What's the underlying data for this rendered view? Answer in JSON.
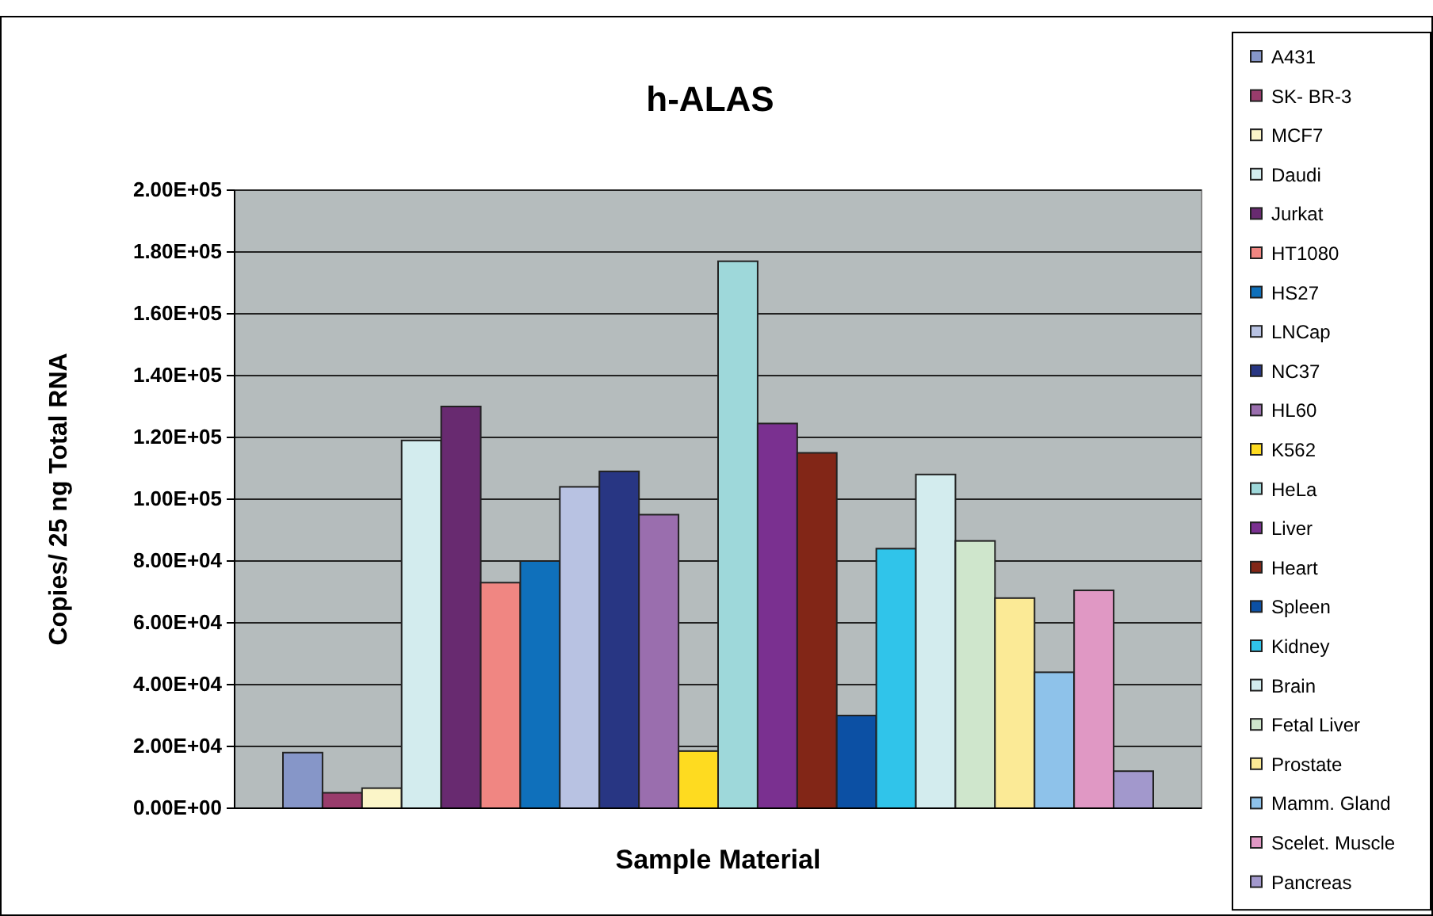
{
  "chart_data": {
    "type": "bar",
    "title": "h-ALAS",
    "xlabel": "Sample Material",
    "ylabel": "Copies/ 25 ng Total RNA",
    "categories": [
      null
    ],
    "ylim": [
      0,
      200000
    ],
    "yticks": [
      {
        "value": 0,
        "label": "0.00E+00"
      },
      {
        "value": 20000,
        "label": "2.00E+04"
      },
      {
        "value": 40000,
        "label": "4.00E+04"
      },
      {
        "value": 60000,
        "label": "6.00E+04"
      },
      {
        "value": 80000,
        "label": "8.00E+04"
      },
      {
        "value": 100000,
        "label": "1.00E+05"
      },
      {
        "value": 120000,
        "label": "1.20E+05"
      },
      {
        "value": 140000,
        "label": "1.40E+05"
      },
      {
        "value": 160000,
        "label": "1.60E+05"
      },
      {
        "value": 180000,
        "label": "1.80E+05"
      },
      {
        "value": 200000,
        "label": "2.00E+05"
      }
    ],
    "grid": "y",
    "legend": "right",
    "series": [
      {
        "name": "A431",
        "color": "#8696c8",
        "values": [
          18000
        ]
      },
      {
        "name": "SK- BR-3",
        "color": "#993c6c",
        "values": [
          5000
        ]
      },
      {
        "name": "MCF7",
        "color": "#fbf5c8",
        "values": [
          6500
        ]
      },
      {
        "name": "Daudi",
        "color": "#d3ecee",
        "values": [
          119000
        ]
      },
      {
        "name": "Jurkat",
        "color": "#682a70",
        "values": [
          130000
        ]
      },
      {
        "name": "HT1080",
        "color": "#f08682",
        "values": [
          73000
        ]
      },
      {
        "name": "HS27",
        "color": "#0f70bb",
        "values": [
          80000
        ]
      },
      {
        "name": "LNCap",
        "color": "#b8c2e2",
        "values": [
          104000
        ]
      },
      {
        "name": "NC37",
        "color": "#283683",
        "values": [
          109000
        ]
      },
      {
        "name": "HL60",
        "color": "#9a6eae",
        "values": [
          95000
        ]
      },
      {
        "name": "K562",
        "color": "#fedb20",
        "values": [
          18500
        ]
      },
      {
        "name": "HeLa",
        "color": "#9ed8da",
        "values": [
          177000
        ]
      },
      {
        "name": "Liver",
        "color": "#7a3090",
        "values": [
          124500
        ]
      },
      {
        "name": "Heart",
        "color": "#822617",
        "values": [
          115000
        ]
      },
      {
        "name": "Spleen",
        "color": "#0c50a4",
        "values": [
          30000
        ]
      },
      {
        "name": "Kidney",
        "color": "#30c4ea",
        "values": [
          84000
        ]
      },
      {
        "name": "Brain",
        "color": "#d3ecee",
        "values": [
          108000
        ]
      },
      {
        "name": "Fetal Liver",
        "color": "#cfe6cc",
        "values": [
          86500
        ]
      },
      {
        "name": "Prostate",
        "color": "#fbea96",
        "values": [
          68000
        ]
      },
      {
        "name": "Mamm. Gland",
        "color": "#8ec2ea",
        "values": [
          44000
        ]
      },
      {
        "name": "Scelet. Muscle",
        "color": "#e098c4",
        "values": [
          70500
        ]
      },
      {
        "name": "Pancreas",
        "color": "#a298cc",
        "values": [
          12000
        ]
      }
    ]
  }
}
